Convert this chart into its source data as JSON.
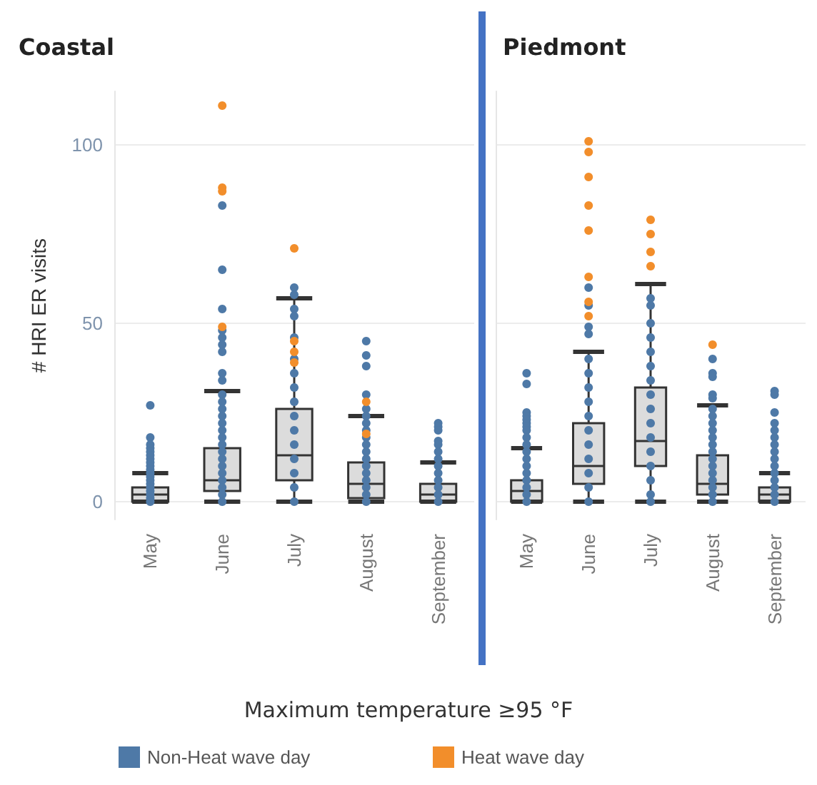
{
  "chart_data": [
    {
      "type": "box",
      "title": "Coastal",
      "ylabel": "# HRI ER visits",
      "legend_title": "Maximum temperature ≥95 °F",
      "categories": [
        "May",
        "June",
        "July",
        "August",
        "September"
      ],
      "boxes": [
        {
          "low": 0,
          "q1": 0,
          "median": 2,
          "q3": 4,
          "high": 8
        },
        {
          "low": 0,
          "q1": 3,
          "median": 6,
          "q3": 15,
          "high": 31
        },
        {
          "low": 0,
          "q1": 6,
          "median": 13,
          "q3": 26,
          "high": 57
        },
        {
          "low": 0,
          "q1": 1,
          "median": 5,
          "q3": 11,
          "high": 24
        },
        {
          "low": 0,
          "q1": 0,
          "median": 2,
          "q3": 5,
          "high": 11
        }
      ],
      "series": [
        {
          "type": "scatter",
          "name": "Non-Heat wave day",
          "color": "#4e79a7",
          "x": [
            "May",
            "May",
            "May",
            "May",
            "May",
            "May",
            "May",
            "May",
            "May",
            "May",
            "May",
            "May",
            "May",
            "May",
            "May",
            "May",
            "May",
            "May",
            "May",
            "June",
            "June",
            "June",
            "June",
            "June",
            "June",
            "June",
            "June",
            "June",
            "June",
            "June",
            "June",
            "June",
            "June",
            "June",
            "June",
            "June",
            "June",
            "June",
            "June",
            "June",
            "June",
            "June",
            "June",
            "June",
            "July",
            "July",
            "July",
            "July",
            "July",
            "July",
            "July",
            "July",
            "July",
            "July",
            "July",
            "July",
            "July",
            "July",
            "July",
            "July",
            "August",
            "August",
            "August",
            "August",
            "August",
            "August",
            "August",
            "August",
            "August",
            "August",
            "August",
            "August",
            "August",
            "August",
            "August",
            "August",
            "August",
            "August",
            "September",
            "September",
            "September",
            "September",
            "September",
            "September",
            "September",
            "September",
            "September",
            "September",
            "September",
            "September",
            "September"
          ],
          "values": [
            27,
            18,
            16,
            15,
            14,
            13,
            12,
            11,
            10,
            9,
            8,
            7,
            6,
            5,
            4,
            3,
            2,
            1,
            0,
            83,
            65,
            54,
            48,
            46,
            44,
            42,
            36,
            34,
            30,
            28,
            26,
            24,
            22,
            20,
            18,
            16,
            14,
            12,
            10,
            8,
            6,
            4,
            2,
            0,
            60,
            58,
            54,
            52,
            46,
            40,
            36,
            32,
            28,
            24,
            20,
            16,
            12,
            8,
            4,
            0,
            45,
            41,
            38,
            30,
            26,
            24,
            22,
            20,
            18,
            16,
            14,
            12,
            10,
            8,
            6,
            4,
            2,
            0,
            22,
            21,
            20,
            17,
            16,
            14,
            12,
            10,
            8,
            6,
            4,
            2,
            0
          ]
        },
        {
          "type": "scatter",
          "color": "#f28e2b",
          "x": [
            "June",
            "June",
            "June",
            "June",
            "July",
            "July",
            "July",
            "July",
            "August",
            "August"
          ],
          "values": [
            111,
            88,
            87,
            49,
            71,
            45,
            42,
            39,
            28,
            19
          ]
        }
      ],
      "ylim": [
        -5,
        115
      ],
      "yticks": [
        0,
        50,
        100
      ],
      "grid": "y",
      "legend": "bottom",
      "marker": "circle"
    },
    {
      "type": "box",
      "title": "Piedmont",
      "categories": [
        "May",
        "June",
        "July",
        "August",
        "September"
      ],
      "boxes": [
        {
          "low": 0,
          "q1": 0,
          "median": 3,
          "q3": 6,
          "high": 15
        },
        {
          "low": 0,
          "q1": 5,
          "median": 10,
          "q3": 22,
          "high": 42
        },
        {
          "low": 0,
          "q1": 10,
          "median": 17,
          "q3": 32,
          "high": 61
        },
        {
          "low": 0,
          "q1": 2,
          "median": 5,
          "q3": 13,
          "high": 27
        },
        {
          "low": 0,
          "q1": 0,
          "median": 2,
          "q3": 4,
          "high": 8
        }
      ],
      "series": [
        {
          "type": "scatter",
          "color": "#4e79a7",
          "x": [
            "May",
            "May",
            "May",
            "May",
            "May",
            "May",
            "May",
            "May",
            "May",
            "May",
            "May",
            "May",
            "May",
            "May",
            "May",
            "May",
            "May",
            "May",
            "June",
            "June",
            "June",
            "June",
            "June",
            "June",
            "June",
            "June",
            "June",
            "June",
            "June",
            "June",
            "June",
            "June",
            "June",
            "July",
            "July",
            "July",
            "July",
            "July",
            "July",
            "July",
            "July",
            "July",
            "July",
            "July",
            "July",
            "July",
            "July",
            "July",
            "July",
            "August",
            "August",
            "August",
            "August",
            "August",
            "August",
            "August",
            "August",
            "August",
            "August",
            "August",
            "August",
            "August",
            "August",
            "August",
            "August",
            "August",
            "August",
            "August",
            "September",
            "September",
            "September",
            "September",
            "September",
            "September",
            "September",
            "September",
            "September",
            "September",
            "September",
            "September",
            "September",
            "September",
            "September"
          ],
          "values": [
            36,
            33,
            25,
            24,
            23,
            22,
            21,
            20,
            18,
            16,
            14,
            12,
            10,
            8,
            6,
            4,
            2,
            0,
            60,
            55,
            49,
            47,
            40,
            36,
            32,
            28,
            24,
            20,
            16,
            12,
            8,
            4,
            0,
            57,
            55,
            50,
            46,
            42,
            38,
            34,
            30,
            26,
            22,
            18,
            14,
            10,
            6,
            2,
            0,
            40,
            36,
            35,
            30,
            29,
            26,
            24,
            22,
            20,
            18,
            16,
            14,
            12,
            10,
            8,
            6,
            4,
            2,
            0,
            31,
            30,
            25,
            22,
            20,
            18,
            16,
            14,
            12,
            10,
            8,
            6,
            4,
            2,
            0
          ]
        },
        {
          "type": "scatter",
          "name": "Heat wave day",
          "color": "#f28e2b",
          "x": [
            "June",
            "June",
            "June",
            "June",
            "June",
            "June",
            "June",
            "June",
            "July",
            "July",
            "July",
            "July",
            "August"
          ],
          "values": [
            101,
            98,
            91,
            83,
            76,
            63,
            56,
            52,
            79,
            75,
            70,
            66,
            44
          ]
        }
      ],
      "ylim": [
        -5,
        115
      ],
      "yticks": [
        0,
        50,
        100
      ],
      "grid": "y",
      "tick_labels": "x",
      "legend": "bottom",
      "marker": "circle"
    }
  ]
}
